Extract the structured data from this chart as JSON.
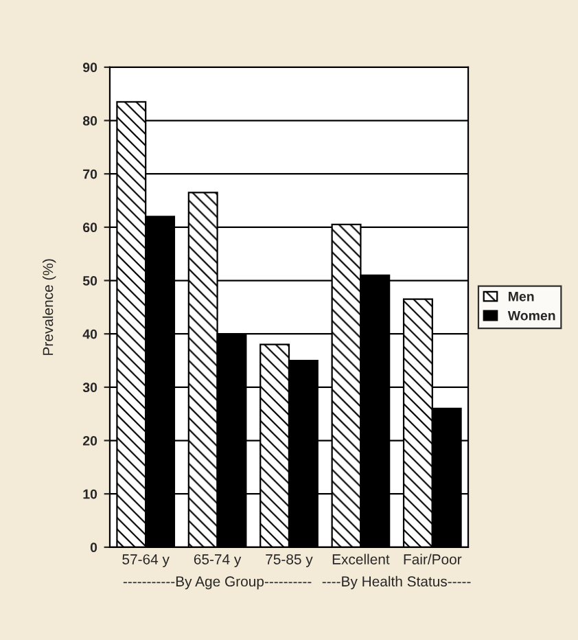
{
  "chart_data": {
    "type": "bar",
    "ylabel": "Prevalence (%)",
    "categories": [
      "57-64 y",
      "65-74 y",
      "75-85 y",
      "Excellent",
      "Fair/Poor"
    ],
    "series": [
      {
        "name": "Men",
        "color": "#000000",
        "values": [
          83.5,
          66.5,
          38,
          60.5,
          46.5
        ]
      },
      {
        "name": "Women",
        "color": "#000000",
        "values": [
          62,
          40,
          35,
          51,
          26
        ]
      }
    ],
    "ylim": [
      0,
      90
    ],
    "yticks": [
      0,
      10,
      20,
      30,
      40,
      50,
      60,
      70,
      80,
      90
    ],
    "grid": "y",
    "legend": "right",
    "annotations": [
      "-----------By Age Group----------",
      "----By Health Status-----"
    ]
  }
}
